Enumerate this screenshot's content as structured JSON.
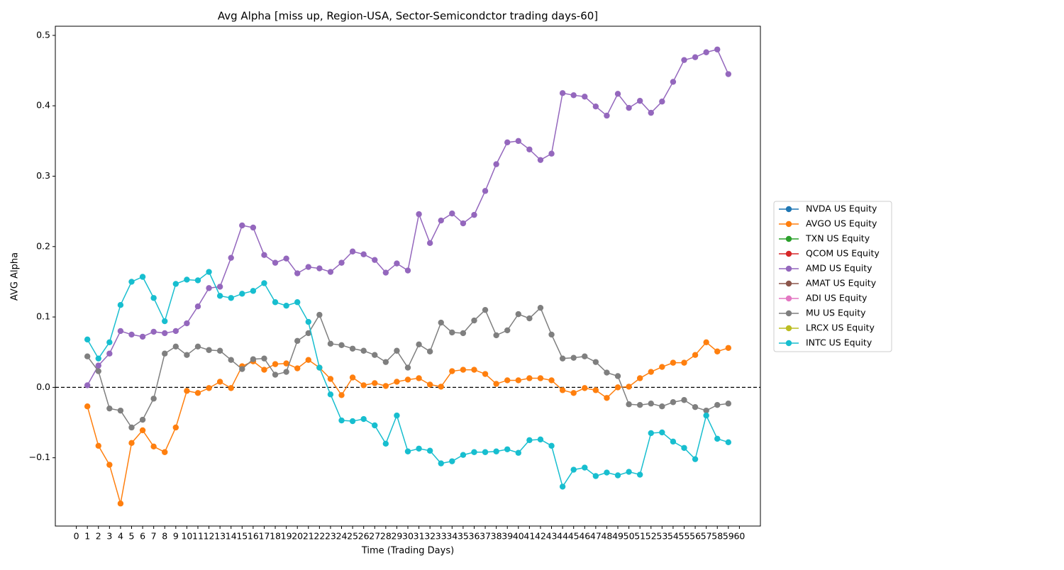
{
  "chart_data": {
    "type": "line",
    "title": "Avg Alpha [miss up, Region-USA, Sector-Semicondctor trading days-60]",
    "xlabel": "Time (Trading Days)",
    "ylabel": "AVG Alpha",
    "x": [
      1,
      2,
      3,
      4,
      5,
      6,
      7,
      8,
      9,
      10,
      11,
      12,
      13,
      14,
      15,
      16,
      17,
      18,
      19,
      20,
      21,
      22,
      23,
      24,
      25,
      26,
      27,
      28,
      29,
      30,
      31,
      32,
      33,
      34,
      35,
      36,
      37,
      38,
      39,
      40,
      41,
      42,
      43,
      44,
      45,
      46,
      47,
      48,
      49,
      50,
      51,
      52,
      53,
      54,
      55,
      56,
      57,
      58,
      59
    ],
    "xlim": [
      -1.9,
      61.9
    ],
    "xticks": [
      0,
      1,
      2,
      3,
      4,
      5,
      6,
      7,
      8,
      9,
      10,
      11,
      12,
      13,
      14,
      15,
      16,
      17,
      18,
      19,
      20,
      21,
      22,
      23,
      24,
      25,
      26,
      27,
      28,
      29,
      30,
      31,
      32,
      33,
      34,
      35,
      36,
      37,
      38,
      39,
      40,
      41,
      42,
      43,
      44,
      45,
      46,
      47,
      48,
      49,
      50,
      51,
      52,
      53,
      54,
      55,
      56,
      57,
      58,
      59,
      60
    ],
    "ylim": [
      -0.197,
      0.513
    ],
    "yticks": [
      {
        "value": -0.1,
        "label": "−0.1"
      },
      {
        "value": 0,
        "label": "0.0"
      },
      0.1,
      0.2,
      0.3,
      0.4,
      0.5
    ],
    "reference_line": {
      "y": 0,
      "style": "dashed",
      "color": "#000000"
    },
    "legend": "right",
    "series": [
      {
        "name": "NVDA US Equity",
        "color": "#1f77b4",
        "values": [
          null,
          null,
          null,
          null,
          null,
          null,
          null,
          null,
          null,
          null,
          null,
          null,
          null,
          null,
          null,
          null,
          null,
          null,
          null,
          null,
          null,
          null,
          null,
          null,
          null,
          null,
          null,
          null,
          null,
          null,
          null,
          null,
          null,
          null,
          null,
          null,
          null,
          null,
          null,
          null,
          null,
          null,
          null,
          null,
          null,
          null,
          null,
          null,
          null,
          null,
          null,
          null,
          null,
          null,
          null,
          null,
          null,
          null,
          null
        ]
      },
      {
        "name": "AVGO US Equity",
        "color": "#ff7f0e",
        "values": [
          -0.027,
          -0.083,
          -0.11,
          -0.165,
          -0.079,
          -0.061,
          -0.084,
          -0.092,
          -0.057,
          -0.005,
          -0.008,
          -0.001,
          0.008,
          -0.001,
          0.03,
          0.037,
          0.025,
          0.033,
          0.034,
          0.027,
          0.039,
          0.028,
          0.012,
          -0.011,
          0.014,
          0.003,
          0.006,
          0.002,
          0.008,
          0.011,
          0.013,
          0.004,
          0.001,
          0.023,
          0.025,
          0.025,
          0.019,
          0.005,
          0.01,
          0.01,
          0.013,
          0.013,
          0.01,
          -0.004,
          -0.008,
          -0.001,
          -0.004,
          -0.015,
          0.0,
          0.001,
          0.013,
          0.022,
          0.029,
          0.035,
          0.035,
          0.046,
          0.064,
          0.051,
          0.056
        ]
      },
      {
        "name": "TXN US Equity",
        "color": "#2ca02c",
        "values": [
          null,
          null,
          null,
          null,
          null,
          null,
          null,
          null,
          null,
          null,
          null,
          null,
          null,
          null,
          null,
          null,
          null,
          null,
          null,
          null,
          null,
          null,
          null,
          null,
          null,
          null,
          null,
          null,
          null,
          null,
          null,
          null,
          null,
          null,
          null,
          null,
          null,
          null,
          null,
          null,
          null,
          null,
          null,
          null,
          null,
          null,
          null,
          null,
          null,
          null,
          null,
          null,
          null,
          null,
          null,
          null,
          null,
          null,
          null
        ]
      },
      {
        "name": "QCOM US Equity",
        "color": "#d62728",
        "values": [
          null,
          null,
          null,
          null,
          null,
          null,
          null,
          null,
          null,
          null,
          null,
          null,
          null,
          null,
          null,
          null,
          null,
          null,
          null,
          null,
          null,
          null,
          null,
          null,
          null,
          null,
          null,
          null,
          null,
          null,
          null,
          null,
          null,
          null,
          null,
          null,
          null,
          null,
          null,
          null,
          null,
          null,
          null,
          null,
          null,
          null,
          null,
          null,
          null,
          null,
          null,
          null,
          null,
          null,
          null,
          null,
          null,
          null,
          null
        ]
      },
      {
        "name": "AMD US Equity",
        "color": "#9467bd",
        "values": [
          0.003,
          0.031,
          0.048,
          0.08,
          0.075,
          0.072,
          0.079,
          0.077,
          0.08,
          0.091,
          0.115,
          0.141,
          0.143,
          0.184,
          0.23,
          0.227,
          0.188,
          0.177,
          0.183,
          0.162,
          0.171,
          0.169,
          0.164,
          0.177,
          0.193,
          0.189,
          0.181,
          0.163,
          0.176,
          0.166,
          0.246,
          0.205,
          0.237,
          0.247,
          0.233,
          0.245,
          0.279,
          0.317,
          0.348,
          0.35,
          0.338,
          0.323,
          0.332,
          0.418,
          0.415,
          0.413,
          0.399,
          0.386,
          0.417,
          0.397,
          0.407,
          0.39,
          0.406,
          0.434,
          0.465,
          0.469,
          0.476,
          0.48,
          0.445
        ]
      },
      {
        "name": "AMAT US Equity",
        "color": "#8c564b",
        "values": [
          null,
          null,
          null,
          null,
          null,
          null,
          null,
          null,
          null,
          null,
          null,
          null,
          null,
          null,
          null,
          null,
          null,
          null,
          null,
          null,
          null,
          null,
          null,
          null,
          null,
          null,
          null,
          null,
          null,
          null,
          null,
          null,
          null,
          null,
          null,
          null,
          null,
          null,
          null,
          null,
          null,
          null,
          null,
          null,
          null,
          null,
          null,
          null,
          null,
          null,
          null,
          null,
          null,
          null,
          null,
          null,
          null,
          null,
          null
        ]
      },
      {
        "name": "ADI US Equity",
        "color": "#e377c2",
        "values": [
          null,
          null,
          null,
          null,
          null,
          null,
          null,
          null,
          null,
          null,
          null,
          null,
          null,
          null,
          null,
          null,
          null,
          null,
          null,
          null,
          null,
          null,
          null,
          null,
          null,
          null,
          null,
          null,
          null,
          null,
          null,
          null,
          null,
          null,
          null,
          null,
          null,
          null,
          null,
          null,
          null,
          null,
          null,
          null,
          null,
          null,
          null,
          null,
          null,
          null,
          null,
          null,
          null,
          null,
          null,
          null,
          null,
          null,
          null
        ]
      },
      {
        "name": "MU US Equity",
        "color": "#7f7f7f",
        "values": [
          0.044,
          0.023,
          -0.03,
          -0.033,
          -0.057,
          -0.046,
          -0.016,
          0.048,
          0.058,
          0.046,
          0.058,
          0.053,
          0.052,
          0.039,
          0.026,
          0.04,
          0.041,
          0.018,
          0.022,
          0.066,
          0.077,
          0.103,
          0.062,
          0.06,
          0.055,
          0.052,
          0.046,
          0.036,
          0.052,
          0.028,
          0.061,
          0.051,
          0.092,
          0.078,
          0.077,
          0.095,
          0.11,
          0.074,
          0.081,
          0.104,
          0.098,
          0.113,
          0.075,
          0.041,
          0.042,
          0.044,
          0.036,
          0.021,
          0.016,
          -0.024,
          -0.025,
          -0.023,
          -0.027,
          -0.021,
          -0.018,
          -0.028,
          -0.033,
          -0.025,
          -0.023
        ]
      },
      {
        "name": "LRCX US Equity",
        "color": "#bcbd22",
        "values": [
          null,
          null,
          null,
          null,
          null,
          null,
          null,
          null,
          null,
          null,
          null,
          null,
          null,
          null,
          null,
          null,
          null,
          null,
          null,
          null,
          null,
          null,
          null,
          null,
          null,
          null,
          null,
          null,
          null,
          null,
          null,
          null,
          null,
          null,
          null,
          null,
          null,
          null,
          null,
          null,
          null,
          null,
          null,
          null,
          null,
          null,
          null,
          null,
          null,
          null,
          null,
          null,
          null,
          null,
          null,
          null,
          null,
          null,
          null
        ]
      },
      {
        "name": "INTC US Equity",
        "color": "#17becf",
        "values": [
          0.068,
          0.041,
          0.064,
          0.117,
          0.15,
          0.157,
          0.127,
          0.094,
          0.147,
          0.153,
          0.152,
          0.164,
          0.13,
          0.127,
          0.133,
          0.137,
          0.148,
          0.121,
          0.116,
          0.121,
          0.093,
          0.028,
          -0.01,
          -0.047,
          -0.048,
          -0.045,
          -0.054,
          -0.08,
          -0.04,
          -0.091,
          -0.087,
          -0.09,
          -0.108,
          -0.105,
          -0.096,
          -0.092,
          -0.092,
          -0.091,
          -0.088,
          -0.093,
          -0.075,
          -0.074,
          -0.083,
          -0.141,
          -0.117,
          -0.114,
          -0.126,
          -0.121,
          -0.125,
          -0.12,
          -0.124,
          -0.065,
          -0.064,
          -0.077,
          -0.086,
          -0.102,
          -0.04,
          -0.073,
          -0.078
        ]
      }
    ]
  }
}
